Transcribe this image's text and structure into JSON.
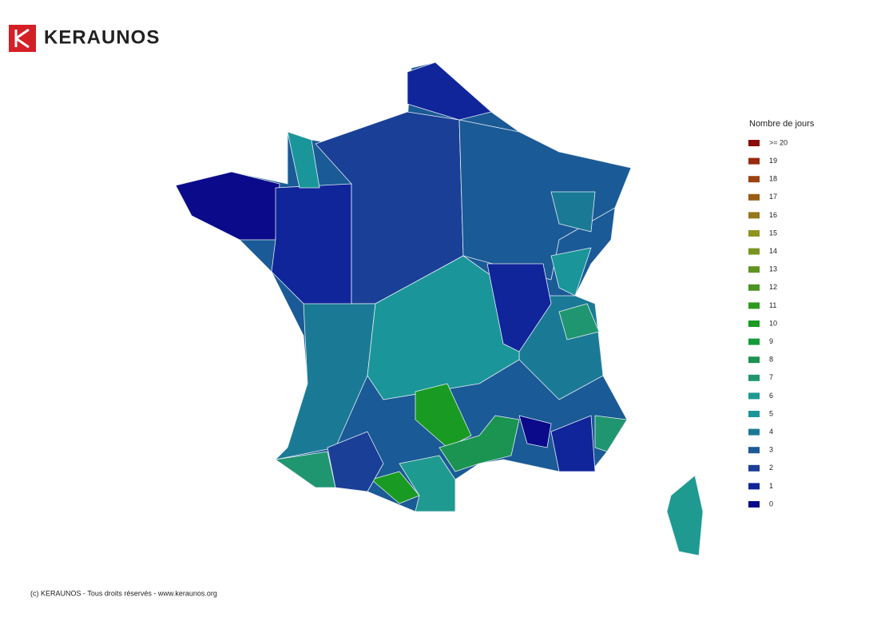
{
  "header": {
    "logo": "KERAUNOS"
  },
  "legend": {
    "title": "Nombre de jours",
    "items": [
      {
        "value": 20,
        "label": ">= 20",
        "color": "#8b0a0a"
      },
      {
        "value": 19,
        "label": "19",
        "color": "#992a0c"
      },
      {
        "value": 18,
        "label": "18",
        "color": "#9c4210"
      },
      {
        "value": 17,
        "label": "17",
        "color": "#985c14"
      },
      {
        "value": 16,
        "label": "16",
        "color": "#94781a"
      },
      {
        "value": 15,
        "label": "15",
        "color": "#8f9420"
      },
      {
        "value": 14,
        "label": "14",
        "color": "#7a9620"
      },
      {
        "value": 13,
        "label": "13",
        "color": "#5f9420"
      },
      {
        "value": 12,
        "label": "12",
        "color": "#4a9520"
      },
      {
        "value": 11,
        "label": "11",
        "color": "#2f9a20"
      },
      {
        "value": 10,
        "label": "10",
        "color": "#199a22"
      },
      {
        "value": 9,
        "label": "9",
        "color": "#159a3a"
      },
      {
        "value": 8,
        "label": "8",
        "color": "#1a9450"
      },
      {
        "value": 7,
        "label": "7",
        "color": "#1f9670"
      },
      {
        "value": 6,
        "label": "6",
        "color": "#1f9a90"
      },
      {
        "value": 5,
        "label": "5",
        "color": "#1a969a"
      },
      {
        "value": 4,
        "label": "4",
        "color": "#1a7a96"
      },
      {
        "value": 3,
        "label": "3",
        "color": "#1a5a96"
      },
      {
        "value": 2,
        "label": "2",
        "color": "#1a3f96"
      },
      {
        "value": 1,
        "label": "1",
        "color": "#10259a"
      },
      {
        "value": 0,
        "label": "0",
        "color": "#0a0a8a"
      }
    ]
  },
  "map": {
    "base_value": 3,
    "region_values": [
      0,
      1,
      1,
      1,
      2,
      3,
      4,
      5,
      5,
      4,
      7,
      4,
      5,
      10,
      8,
      7,
      10,
      6,
      1,
      7,
      0,
      6,
      2,
      1
    ]
  },
  "footer": "(c) KERAUNOS - Tous droits réservés - www.keraunos.org"
}
